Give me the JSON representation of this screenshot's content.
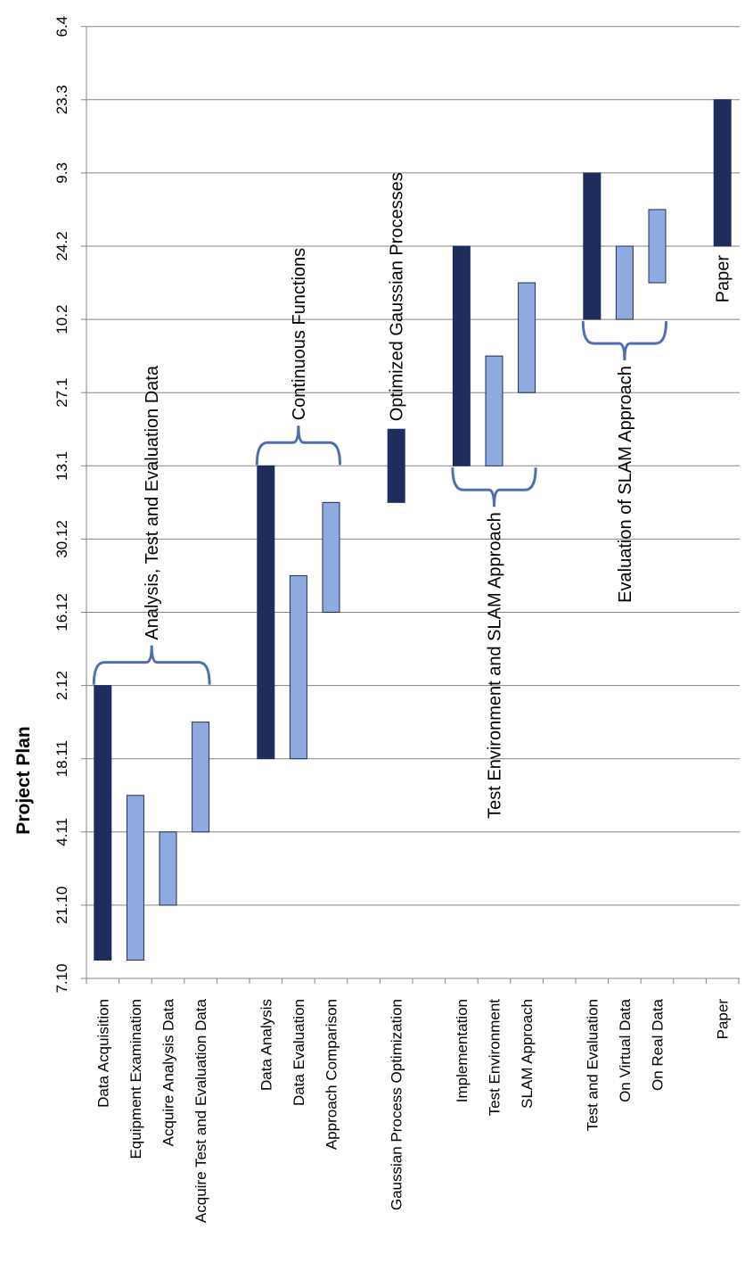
{
  "chart_data": {
    "type": "bar",
    "orientation": "floating-range",
    "title": "Project Plan",
    "time_ticks": [
      "7.10",
      "21.10",
      "4.11",
      "18.11",
      "2.12",
      "16.12",
      "30.12",
      "13.1",
      "27.1",
      "10.2",
      "24.2",
      "9.3",
      "23.3",
      "6.4"
    ],
    "tasks": [
      {
        "label": "Data Acquisition",
        "start": "7.10",
        "end": "2.12",
        "start_index": 0.25,
        "end_index": 4,
        "kind": "main"
      },
      {
        "label": "Equipment Examination",
        "start": "7.10",
        "end": "18.11",
        "start_index": 0.25,
        "end_index": 2.5,
        "kind": "sub"
      },
      {
        "label": "Acquire Analysis Data",
        "start": "21.10",
        "end": "4.11",
        "start_index": 1,
        "end_index": 2,
        "kind": "sub"
      },
      {
        "label": "Acquire Test and Evaluation Data",
        "start": "4.11",
        "end": "2.12",
        "start_index": 2,
        "end_index": 3.5,
        "kind": "sub"
      },
      {
        "label": "",
        "gap": true
      },
      {
        "label": "Data Analysis",
        "start": "18.11",
        "end": "13.1",
        "start_index": 3,
        "end_index": 7,
        "kind": "main"
      },
      {
        "label": "Data Evaluation",
        "start": "18.11",
        "end": "30.12",
        "start_index": 3,
        "end_index": 5.5,
        "kind": "sub"
      },
      {
        "label": "Approach Comparison",
        "start": "16.12",
        "end": "13.1",
        "start_index": 5,
        "end_index": 6.5,
        "kind": "sub"
      },
      {
        "label": "",
        "gap": true
      },
      {
        "label": "Gaussian Process Optimization",
        "start": "13.1",
        "end": "27.1",
        "start_index": 6.5,
        "end_index": 7.5,
        "kind": "main"
      },
      {
        "label": "",
        "gap": true
      },
      {
        "label": "Implementation",
        "start": "13.1",
        "end": "24.2",
        "start_index": 7,
        "end_index": 10,
        "kind": "main"
      },
      {
        "label": "Test Environment",
        "start": "13.1",
        "end": "10.2",
        "start_index": 7,
        "end_index": 8.5,
        "kind": "sub"
      },
      {
        "label": "SLAM Approach",
        "start": "27.1",
        "end": "24.2",
        "start_index": 8,
        "end_index": 9.5,
        "kind": "sub"
      },
      {
        "label": "",
        "gap": true
      },
      {
        "label": "Test and Evaluation",
        "start": "10.2",
        "end": "9.3",
        "start_index": 9,
        "end_index": 11,
        "kind": "main"
      },
      {
        "label": "On Virtual Data",
        "start": "10.2",
        "end": "24.2",
        "start_index": 9,
        "end_index": 10,
        "kind": "sub"
      },
      {
        "label": "On Real Data",
        "start": "24.2",
        "end": "9.3",
        "start_index": 9.5,
        "end_index": 10.5,
        "kind": "sub"
      },
      {
        "label": "",
        "gap": true
      },
      {
        "label": "Paper",
        "start": "24.2",
        "end": "23.3",
        "start_index": 10,
        "end_index": 12,
        "kind": "main"
      }
    ],
    "annotations": [
      {
        "text": "Analysis, Test and Evaluation Data",
        "group_start": 0,
        "group_end": 3,
        "side": "late"
      },
      {
        "text": "Continuous Functions",
        "group_start": 5,
        "group_end": 7,
        "side": "late"
      },
      {
        "text": "Optimized Gaussian Processes",
        "group_start": 9,
        "group_end": 9,
        "side": "late"
      },
      {
        "text": "Test Environment and SLAM Approach",
        "group_start": 11,
        "group_end": 13,
        "side": "early"
      },
      {
        "text": "Evaluation of SLAM Approach",
        "group_start": 15,
        "group_end": 17,
        "side": "early"
      },
      {
        "text": "Paper",
        "group_start": 19,
        "group_end": 19,
        "side": "early"
      }
    ],
    "colors": {
      "main": "#1f2d5c",
      "sub": "#8eaadf",
      "bar_outline": "#1f2d5c",
      "brace": "#4f6fb5",
      "grid": "#868686"
    },
    "grid": true,
    "legend": false
  }
}
